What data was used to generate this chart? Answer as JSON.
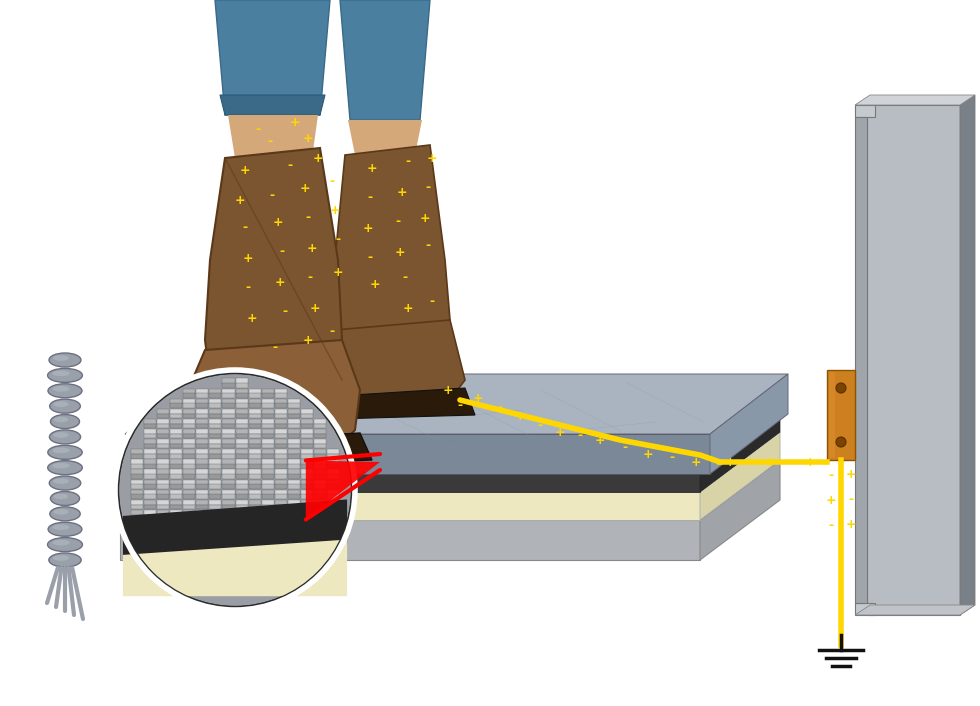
{
  "bg_color": "#ffffff",
  "figsize": [
    9.8,
    7.06
  ],
  "dpi": 100,
  "charge_color": "#FFD700",
  "tile_color": "#9ea8b4",
  "tile_top_color": "#aab4c0",
  "tile_side_color": "#7a8898",
  "tile_dark_edge": "#4a5560",
  "underlayer_cream": "#ede8c0",
  "underlayer_gray": "#c8ccd0",
  "ground_plane_color": "#c0c4c8",
  "yellow_wire_color": "#FFD700",
  "copper_color": "#cd8020",
  "steel_color": "#9298a0",
  "steel_light": "#b8bdc4",
  "steel_dark": "#6a6f78",
  "rope_color": "#9aa0aa",
  "skin_color": "#d4a878",
  "jeans_color": "#4a7fa0",
  "boot_color": "#7a5530",
  "boot_dark": "#5a3818",
  "boot_sole": "#2a1a0a"
}
